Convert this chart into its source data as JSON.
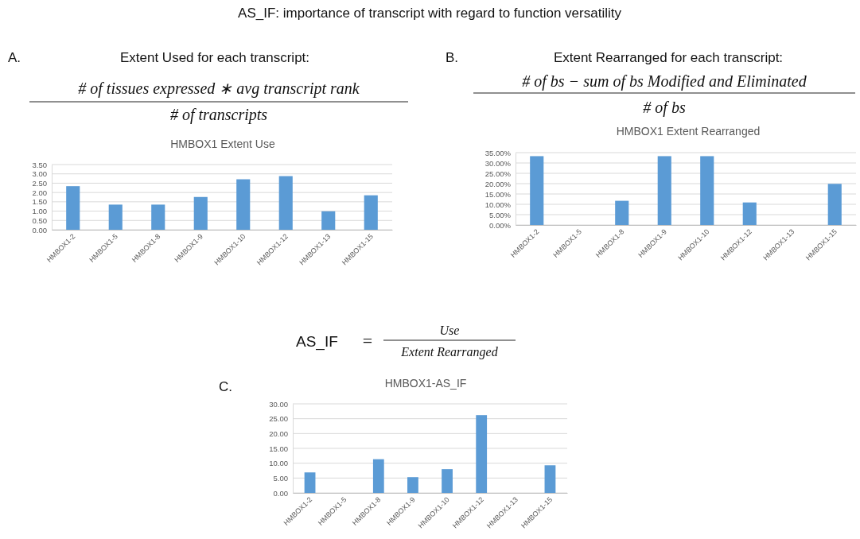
{
  "chart_data": [
    {
      "type": "bar",
      "title": "HMBOX1 Extent Use",
      "categories": [
        "HMBOX1-2",
        "HMBOX1-5",
        "HMBOX1-8",
        "HMBOX1-9",
        "HMBOX1-10",
        "HMBOX1-12",
        "HMBOX1-13",
        "HMBOX1-15"
      ],
      "values": [
        2.34,
        1.35,
        1.35,
        1.76,
        2.71,
        2.88,
        0.99,
        1.85
      ],
      "color": "#5b9bd5",
      "ylim": [
        0,
        3.5
      ],
      "yticks": [
        {
          "value": 0,
          "label": "0.00"
        },
        {
          "value": 0.5,
          "label": "0.50"
        },
        {
          "value": 1,
          "label": "1.00"
        },
        {
          "value": 1.5,
          "label": "1.50"
        },
        {
          "value": 2,
          "label": "2.00"
        },
        {
          "value": 2.5,
          "label": "2.50"
        },
        {
          "value": 3,
          "label": "3.00"
        },
        {
          "value": 3.5,
          "label": "3.50"
        }
      ],
      "grid": "y",
      "annotations": [
        "AS_IF: importance of transcript with regard to function versatility",
        "A.",
        "Extent Used for each transcript:",
        "# of tissues expressed  ∗ avg transcript rank",
        "# of transcripts"
      ]
    },
    {
      "type": "bar",
      "title": "HMBOX1 Extent Rearranged",
      "categories": [
        "HMBOX1-2",
        "HMBOX1-5",
        "HMBOX1-8",
        "HMBOX1-9",
        "HMBOX1-10",
        "HMBOX1-12",
        "HMBOX1-13",
        "HMBOX1-15"
      ],
      "values": [
        33.3,
        0,
        11.7,
        33.3,
        33.3,
        10.9,
        0,
        19.9
      ],
      "color": "#5b9bd5",
      "ylim": [
        0,
        35
      ],
      "yticks": [
        {
          "value": 0,
          "label": "0.00%"
        },
        {
          "value": 5,
          "label": "5.00%"
        },
        {
          "value": 10,
          "label": "10.00%"
        },
        {
          "value": 15,
          "label": "15.00%"
        },
        {
          "value": 20,
          "label": "20.00%"
        },
        {
          "value": 25,
          "label": "25.00%"
        },
        {
          "value": 30,
          "label": "30.00%"
        },
        {
          "value": 35,
          "label": "35.00%"
        }
      ],
      "grid": "y",
      "annotations": [
        "B.",
        "Extent Rearranged for each transcript:",
        "# of bs − sum of bs Modified and Eliminated",
        "# of bs"
      ]
    },
    {
      "type": "bar",
      "title": "HMBOX1-AS_IF",
      "categories": [
        "HMBOX1-2",
        "HMBOX1-5",
        "HMBOX1-8",
        "HMBOX1-9",
        "HMBOX1-10",
        "HMBOX1-12",
        "HMBOX1-13",
        "HMBOX1-15"
      ],
      "values": [
        6.9,
        null,
        11.35,
        5.3,
        8.0,
        26.2,
        null,
        9.3
      ],
      "color": "#5b9bd5",
      "ylim": [
        0,
        30
      ],
      "yticks": [
        {
          "value": 0,
          "label": "0.00"
        },
        {
          "value": 5,
          "label": "5.00"
        },
        {
          "value": 10,
          "label": "10.00"
        },
        {
          "value": 15,
          "label": "15.00"
        },
        {
          "value": 20,
          "label": "20.00"
        },
        {
          "value": 25,
          "label": "25.00"
        },
        {
          "value": 30,
          "label": "30.00"
        }
      ],
      "grid": "y",
      "annotations": [
        "C.",
        "AS_IF",
        "=",
        "Use",
        "Extent Rearranged"
      ]
    }
  ]
}
